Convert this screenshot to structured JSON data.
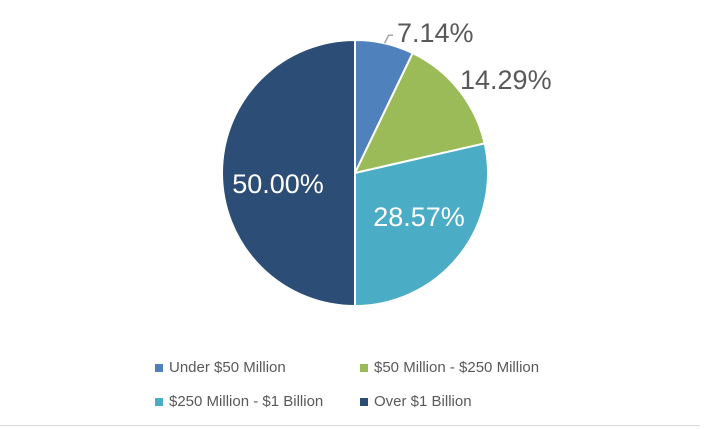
{
  "chart_data": {
    "type": "pie",
    "title": "",
    "start_angle_deg": 0,
    "direction": "clockwise",
    "slices": [
      {
        "label": "Under $50 Million",
        "value": 7.14,
        "data_label": "7.14%",
        "color": "#4f81bd",
        "label_color": "#595959"
      },
      {
        "label": "$50 Million - $250 Million",
        "value": 14.29,
        "data_label": "14.29%",
        "color": "#9bbb59",
        "label_color": "#595959"
      },
      {
        "label": "$250 Million - $1 Billion",
        "value": 28.57,
        "data_label": "28.57%",
        "color": "#4bacc6",
        "label_color": "#ffffff"
      },
      {
        "label": "Over $1 Billion",
        "value": 50.0,
        "data_label": "50.00%",
        "color": "#2c4d75",
        "label_color": "#ffffff"
      }
    ],
    "legend_position": "bottom",
    "slice_border_color": "#ffffff",
    "leader_line_color": "#a6a6a6"
  }
}
